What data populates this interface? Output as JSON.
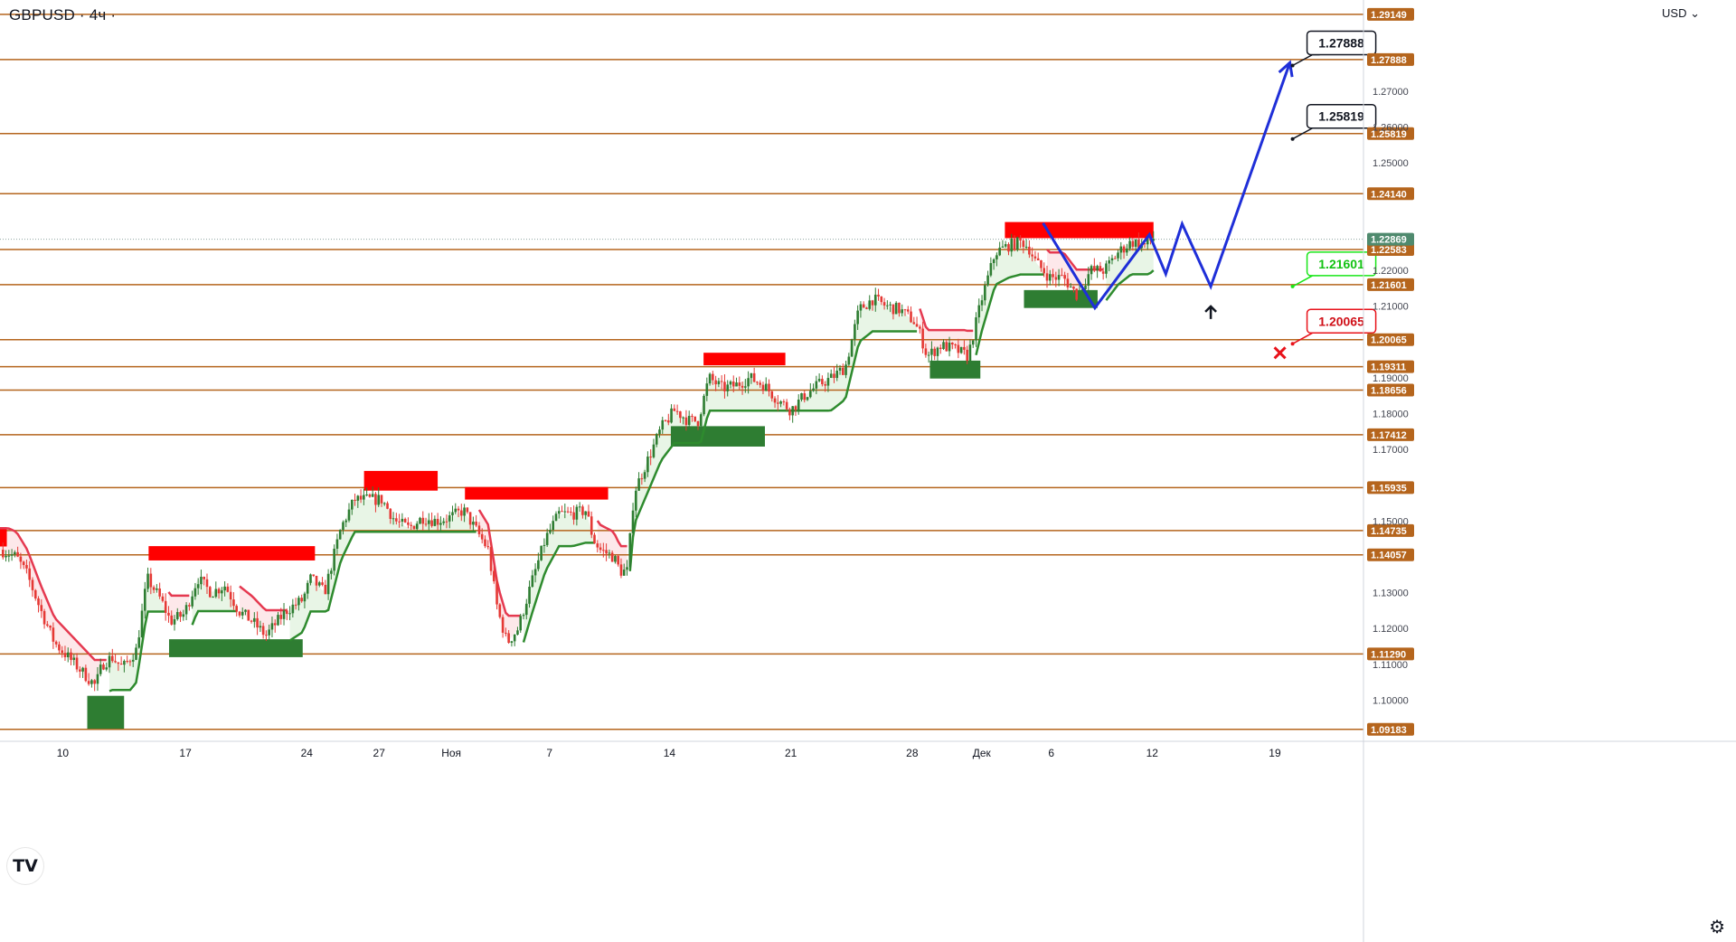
{
  "header": {
    "ticker": "GBPUSD · 4ч ·",
    "currency": "USD"
  },
  "icons": {
    "settings": "gear-icon",
    "logo": "tradingview-logo",
    "chevron": "chevron-down-icon"
  },
  "colors": {
    "level_line": "#b5651d",
    "level_badge": "#b5651d",
    "current_badge": "#4f8a6e",
    "supply_zone": "#ff0000",
    "demand_zone": "#2e7d32",
    "up_candle": "#2e7d32",
    "down_candle": "#e53935",
    "trailing_up": "#2e8b2e",
    "trailing_down": "#e53950",
    "forecast": "#1f2fd8",
    "callout_green": "#19e619",
    "callout_red": "#e8121a"
  },
  "chart_data": {
    "type": "candlestick",
    "symbol": "GBPUSD",
    "timeframe": "4ч",
    "ylim": [
      1.0885,
      1.2955
    ],
    "y_ticks": [
      "1.10000",
      "1.11000",
      "1.12000",
      "1.13000",
      "1.15000",
      "1.17000",
      "1.18000",
      "1.19000",
      "1.21000",
      "1.22000",
      "1.25000",
      "1.26000",
      "1.27000"
    ],
    "x_ticks": [
      "10",
      "17",
      "24",
      "27",
      "Ноя",
      "7",
      "14",
      "21",
      "28",
      "Дек",
      "6",
      "12",
      "19"
    ],
    "levels": [
      "1.29149",
      "1.27888",
      "1.25819",
      "1.24140",
      "1.22583",
      "1.21601",
      "1.20065",
      "1.19311",
      "1.18656",
      "1.17412",
      "1.15935",
      "1.14735",
      "1.14057",
      "1.11290",
      "1.09183"
    ],
    "current_price": "1.22869",
    "price_path": [
      [
        0,
        1.142
      ],
      [
        0.012,
        1.14
      ],
      [
        0.02,
        1.135
      ],
      [
        0.03,
        1.125
      ],
      [
        0.04,
        1.116
      ],
      [
        0.05,
        1.112
      ],
      [
        0.06,
        1.108
      ],
      [
        0.07,
        1.104
      ],
      [
        0.075,
        1.11
      ],
      [
        0.082,
        1.112
      ],
      [
        0.09,
        1.109
      ],
      [
        0.1,
        1.114
      ],
      [
        0.108,
        1.134
      ],
      [
        0.118,
        1.128
      ],
      [
        0.125,
        1.122
      ],
      [
        0.135,
        1.124
      ],
      [
        0.145,
        1.134
      ],
      [
        0.155,
        1.13
      ],
      [
        0.165,
        1.132
      ],
      [
        0.175,
        1.125
      ],
      [
        0.185,
        1.122
      ],
      [
        0.195,
        1.118
      ],
      [
        0.21,
        1.125
      ],
      [
        0.222,
        1.128
      ],
      [
        0.228,
        1.134
      ],
      [
        0.238,
        1.13
      ],
      [
        0.25,
        1.148
      ],
      [
        0.26,
        1.156
      ],
      [
        0.272,
        1.156
      ],
      [
        0.28,
        1.156
      ],
      [
        0.29,
        1.15
      ],
      [
        0.3,
        1.148
      ],
      [
        0.31,
        1.151
      ],
      [
        0.32,
        1.15
      ],
      [
        0.33,
        1.151
      ],
      [
        0.34,
        1.153
      ],
      [
        0.35,
        1.147
      ],
      [
        0.358,
        1.142
      ],
      [
        0.365,
        1.125
      ],
      [
        0.372,
        1.116
      ],
      [
        0.38,
        1.12
      ],
      [
        0.39,
        1.133
      ],
      [
        0.4,
        1.145
      ],
      [
        0.41,
        1.152
      ],
      [
        0.42,
        1.152
      ],
      [
        0.43,
        1.153
      ],
      [
        0.435,
        1.145
      ],
      [
        0.44,
        1.142
      ],
      [
        0.45,
        1.14
      ],
      [
        0.455,
        1.136
      ],
      [
        0.46,
        1.136
      ],
      [
        0.465,
        1.158
      ],
      [
        0.475,
        1.167
      ],
      [
        0.485,
        1.176
      ],
      [
        0.495,
        1.181
      ],
      [
        0.505,
        1.178
      ],
      [
        0.512,
        1.178
      ],
      [
        0.52,
        1.19
      ],
      [
        0.53,
        1.187
      ],
      [
        0.54,
        1.188
      ],
      [
        0.55,
        1.19
      ],
      [
        0.56,
        1.188
      ],
      [
        0.57,
        1.184
      ],
      [
        0.58,
        1.181
      ],
      [
        0.59,
        1.185
      ],
      [
        0.6,
        1.188
      ],
      [
        0.61,
        1.19
      ],
      [
        0.62,
        1.193
      ],
      [
        0.63,
        1.209
      ],
      [
        0.64,
        1.212
      ],
      [
        0.65,
        1.21
      ],
      [
        0.66,
        1.209
      ],
      [
        0.67,
        1.206
      ],
      [
        0.675,
        1.202
      ],
      [
        0.68,
        1.196
      ],
      [
        0.69,
        1.199
      ],
      [
        0.7,
        1.198
      ],
      [
        0.71,
        1.196
      ],
      [
        0.715,
        1.204
      ],
      [
        0.72,
        1.212
      ],
      [
        0.73,
        1.225
      ],
      [
        0.74,
        1.227
      ],
      [
        0.75,
        1.228
      ],
      [
        0.755,
        1.226
      ],
      [
        0.76,
        1.222
      ],
      [
        0.77,
        1.218
      ],
      [
        0.78,
        1.218
      ],
      [
        0.79,
        1.213
      ],
      [
        0.8,
        1.22
      ],
      [
        0.81,
        1.22
      ],
      [
        0.82,
        1.225
      ],
      [
        0.83,
        1.228
      ],
      [
        0.84,
        1.227
      ],
      [
        0.846,
        1.229
      ]
    ],
    "supply_zones": [
      {
        "x": [
          0,
          0.005
        ],
        "y": [
          1.1429,
          1.148
        ]
      },
      {
        "x": [
          0.109,
          0.231
        ],
        "y": [
          1.139,
          1.143
        ]
      },
      {
        "x": [
          0.267,
          0.321
        ],
        "y": [
          1.1585,
          1.164
        ]
      },
      {
        "x": [
          0.341,
          0.446
        ],
        "y": [
          1.156,
          1.1595
        ]
      },
      {
        "x": [
          0.516,
          0.576
        ],
        "y": [
          1.1935,
          1.197
        ]
      },
      {
        "x": [
          0.737,
          0.846
        ],
        "y": [
          1.229,
          1.2335
        ]
      }
    ],
    "demand_zones": [
      {
        "x": [
          0.064,
          0.091
        ],
        "y": [
          1.092,
          1.1012
        ]
      },
      {
        "x": [
          0.124,
          0.222
        ],
        "y": [
          1.112,
          1.117
        ]
      },
      {
        "x": [
          0.492,
          0.561
        ],
        "y": [
          1.1708,
          1.1765
        ]
      },
      {
        "x": [
          0.682,
          0.719
        ],
        "y": [
          1.1898,
          1.1948
        ]
      },
      {
        "x": [
          0.751,
          0.805
        ],
        "y": [
          1.2095,
          1.2145
        ]
      }
    ],
    "forecast_path": [
      [
        0.765,
        1.2332
      ],
      [
        0.803,
        1.2095
      ],
      [
        0.843,
        1.23
      ],
      [
        0.855,
        1.219
      ],
      [
        0.867,
        1.233
      ],
      [
        0.888,
        1.2155
      ],
      [
        0.946,
        1.278
      ]
    ],
    "callouts": [
      {
        "label": "1.27888",
        "type": "target",
        "at": [
          0.948,
          1.2772
        ]
      },
      {
        "label": "1.25819",
        "type": "target",
        "at": [
          0.948,
          1.2567
        ]
      },
      {
        "label": "1.21601",
        "type": "support",
        "at": [
          0.948,
          1.2155
        ]
      },
      {
        "label": "1.20065",
        "type": "stop",
        "at": [
          0.948,
          1.1995
        ]
      }
    ]
  }
}
